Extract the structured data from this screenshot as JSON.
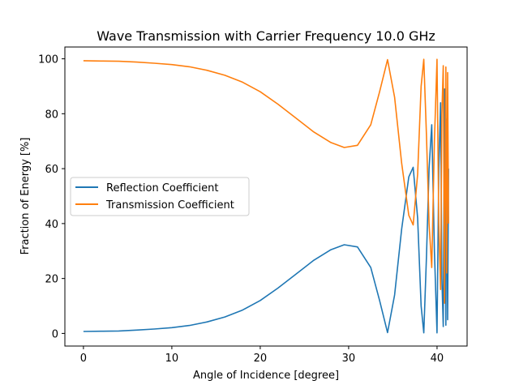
{
  "chart_data": {
    "type": "line",
    "title": "Wave Transmission with Carrier Frequency 10.0 GHz",
    "xlabel": "Angle of Incidence [degree]",
    "ylabel": "Fraction of Energy [%]",
    "xlim": [
      -2.1,
      43.4
    ],
    "ylim": [
      -4.6,
      104.3
    ],
    "xticks": [
      0,
      10,
      20,
      30,
      40
    ],
    "yticks": [
      0,
      20,
      40,
      60,
      80,
      100
    ],
    "grid": false,
    "legend_position": "center-left",
    "series": [
      {
        "name": "Reflection Coefficient",
        "color": "#1f77b4",
        "x": [
          0,
          2,
          4,
          6,
          8,
          10,
          12,
          14,
          16,
          18,
          20,
          22,
          24,
          26,
          28,
          29.5,
          31,
          32.5,
          33.5,
          34.4,
          35.2,
          36,
          36.8,
          37.3,
          37.8,
          38.2,
          38.5,
          38.8,
          39.1,
          39.4,
          39.7,
          40,
          40.2,
          40.4,
          40.55,
          40.7,
          40.85,
          41,
          41.1,
          41.2,
          41.3
        ],
        "y": [
          0.7,
          0.8,
          0.9,
          1.2,
          1.6,
          2.1,
          2.9,
          4.2,
          6.0,
          8.5,
          12.0,
          16.5,
          21.5,
          26.5,
          30.5,
          32.3,
          31.5,
          24.0,
          12.0,
          0.3,
          14.0,
          38.0,
          57.0,
          60.5,
          42.0,
          10.0,
          0.2,
          28.0,
          60.0,
          76.0,
          30.0,
          0.2,
          60.0,
          84.0,
          20.0,
          2.5,
          89.0,
          3.0,
          78.0,
          5.0,
          60.0
        ]
      },
      {
        "name": "Transmission Coefficient",
        "color": "#ff7f0e",
        "x": [
          0,
          2,
          4,
          6,
          8,
          10,
          12,
          14,
          16,
          18,
          20,
          22,
          24,
          26,
          28,
          29.5,
          31,
          32.5,
          33.5,
          34.4,
          35.2,
          36,
          36.8,
          37.3,
          37.8,
          38.2,
          38.5,
          38.8,
          39.1,
          39.4,
          39.7,
          40,
          40.2,
          40.4,
          40.55,
          40.7,
          40.85,
          41,
          41.1,
          41.2,
          41.3
        ],
        "y": [
          99.3,
          99.2,
          99.1,
          98.8,
          98.4,
          97.9,
          97.1,
          95.8,
          94.0,
          91.5,
          88.0,
          83.5,
          78.5,
          73.5,
          69.5,
          67.7,
          68.5,
          76.0,
          88.0,
          99.7,
          86.0,
          62.0,
          43.0,
          39.5,
          58.0,
          90.0,
          99.8,
          72.0,
          40.0,
          24.0,
          70.0,
          99.8,
          40.0,
          16.0,
          80.0,
          97.5,
          11.0,
          97.0,
          22.0,
          95.0,
          40.0
        ]
      }
    ]
  }
}
